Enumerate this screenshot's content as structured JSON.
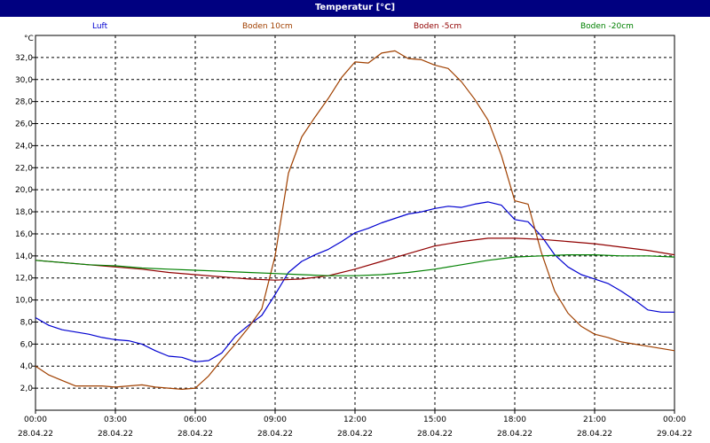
{
  "chart_data": {
    "type": "line",
    "title": "Temperatur [°C]",
    "unit": "°C",
    "ylim": [
      0,
      34
    ],
    "xlim": [
      0,
      24
    ],
    "grid": true,
    "legend_position": "top",
    "y_ticks": [
      2,
      4,
      6,
      8,
      10,
      12,
      14,
      16,
      18,
      20,
      22,
      24,
      26,
      28,
      30,
      32
    ],
    "y_tick_labels": [
      "2,0",
      "4,0",
      "6,0",
      "8,0",
      "10,0",
      "12,0",
      "14,0",
      "16,0",
      "18,0",
      "20,0",
      "22,0",
      "24,0",
      "26,0",
      "28,0",
      "30,0",
      "32,0"
    ],
    "x_ticks": [
      0,
      3,
      6,
      9,
      12,
      15,
      18,
      21,
      24
    ],
    "x_tick_times": [
      "00:00",
      "03:00",
      "06:00",
      "09:00",
      "12:00",
      "15:00",
      "18:00",
      "21:00",
      "00:00"
    ],
    "x_tick_dates": [
      "28.04.22",
      "28.04.22",
      "28.04.22",
      "28.04.22",
      "28.04.22",
      "28.04.22",
      "28.04.22",
      "28.04.22",
      "29.04.22"
    ],
    "series": [
      {
        "name": "Luft",
        "color": "#0000d0",
        "x": [
          0,
          0.5,
          1,
          1.5,
          2,
          2.5,
          3,
          3.5,
          4,
          4.5,
          5,
          5.5,
          6,
          6.5,
          7,
          7.5,
          8,
          8.5,
          9,
          9.5,
          10,
          10.5,
          11,
          11.5,
          12,
          12.5,
          13,
          13.5,
          14,
          14.5,
          15,
          15.5,
          16,
          16.5,
          17,
          17.5,
          18,
          18.5,
          19,
          19.5,
          20,
          20.5,
          21,
          21.5,
          22,
          22.5,
          23,
          23.5,
          24
        ],
        "y": [
          8.4,
          7.7,
          7.3,
          7.1,
          6.9,
          6.6,
          6.4,
          6.3,
          6.0,
          5.4,
          4.9,
          4.8,
          4.4,
          4.5,
          5.2,
          6.7,
          7.7,
          8.6,
          10.5,
          12.5,
          13.5,
          14.1,
          14.6,
          15.3,
          16.1,
          16.5,
          17.0,
          17.4,
          17.8,
          18.0,
          18.3,
          18.5,
          18.4,
          18.7,
          18.9,
          18.6,
          17.3,
          17.1,
          15.8,
          14.1,
          13.0,
          12.3,
          11.9,
          11.5,
          10.8,
          10.0,
          9.1,
          8.9,
          8.9
        ]
      },
      {
        "name": "Boden 10cm",
        "color": "#a04000",
        "x": [
          0,
          0.5,
          1,
          1.5,
          2,
          2.5,
          3,
          3.5,
          4,
          4.5,
          5,
          5.5,
          6,
          6.5,
          7,
          7.5,
          8,
          8.5,
          9,
          9.5,
          10,
          10.5,
          11,
          11.5,
          12,
          12.5,
          13,
          13.5,
          14,
          14.5,
          15,
          15.5,
          16,
          16.5,
          17,
          17.5,
          18,
          18.5,
          19,
          19.5,
          20,
          20.5,
          21,
          21.5,
          22,
          22.5,
          23,
          23.5,
          24
        ],
        "y": [
          4.0,
          3.2,
          2.7,
          2.2,
          2.2,
          2.2,
          2.1,
          2.2,
          2.3,
          2.1,
          2.0,
          1.9,
          2.0,
          3.1,
          4.6,
          6.0,
          7.5,
          9.2,
          14.0,
          21.5,
          24.8,
          26.6,
          28.3,
          30.2,
          31.6,
          31.5,
          32.4,
          32.6,
          31.9,
          31.8,
          31.3,
          31.0,
          29.8,
          28.2,
          26.3,
          23.1,
          19.0,
          18.7,
          14.3,
          10.8,
          8.8,
          7.6,
          6.9,
          6.6,
          6.2,
          6.0,
          5.8,
          5.6,
          5.4
        ]
      },
      {
        "name": "Boden -5cm",
        "color": "#900000",
        "x": [
          0,
          1,
          2,
          3,
          4,
          5,
          6,
          7,
          8,
          9,
          10,
          11,
          12,
          13,
          14,
          15,
          16,
          17,
          18,
          19,
          20,
          21,
          22,
          23,
          24
        ],
        "y": [
          13.6,
          13.4,
          13.2,
          13.0,
          12.8,
          12.5,
          12.3,
          12.1,
          11.9,
          11.8,
          11.9,
          12.2,
          12.8,
          13.5,
          14.2,
          14.9,
          15.3,
          15.6,
          15.6,
          15.5,
          15.3,
          15.1,
          14.8,
          14.5,
          14.1
        ]
      },
      {
        "name": "Boden -20cm",
        "color": "#008000",
        "x": [
          0,
          1,
          2,
          3,
          4,
          5,
          6,
          7,
          8,
          9,
          10,
          11,
          12,
          13,
          14,
          15,
          16,
          17,
          18,
          19,
          20,
          21,
          22,
          23,
          24
        ],
        "y": [
          13.6,
          13.4,
          13.2,
          13.1,
          12.9,
          12.8,
          12.7,
          12.6,
          12.5,
          12.4,
          12.3,
          12.2,
          12.2,
          12.3,
          12.5,
          12.8,
          13.2,
          13.6,
          13.9,
          14.0,
          14.1,
          14.1,
          14.0,
          14.0,
          13.9
        ]
      }
    ]
  }
}
